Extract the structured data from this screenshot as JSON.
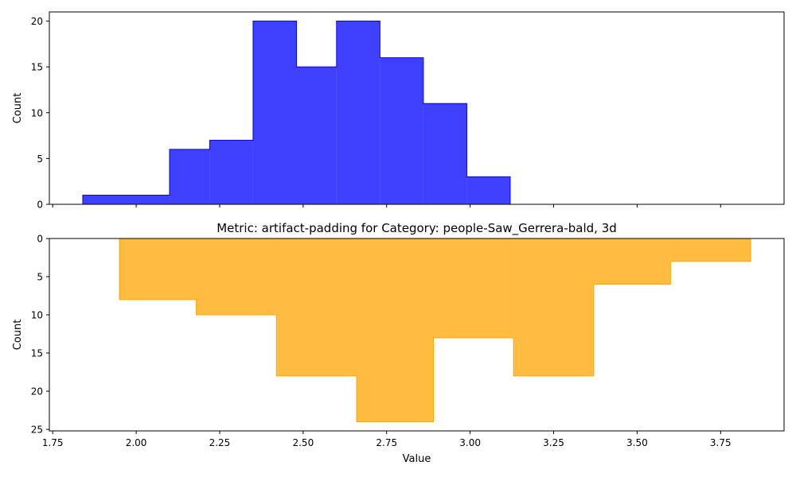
{
  "chart_data": [
    {
      "type": "histogram",
      "title": "",
      "xlabel": "",
      "ylabel": "Count",
      "xlim": [
        1.74,
        3.94
      ],
      "ylim": [
        0,
        21
      ],
      "x_ticks": [
        1.75,
        2.0,
        2.25,
        2.5,
        2.75,
        3.0,
        3.25,
        3.5,
        3.75
      ],
      "x_tick_labels_visible": false,
      "y_ticks": [
        0,
        5,
        10,
        15,
        20
      ],
      "y_tick_labels": [
        "0",
        "5",
        "10",
        "15",
        "20"
      ],
      "bin_edges": [
        1.84,
        2.1,
        2.22,
        2.35,
        2.48,
        2.6,
        2.73,
        2.86,
        2.99,
        3.12
      ],
      "counts": [
        1,
        6,
        7,
        20,
        15,
        20,
        16,
        11,
        3
      ],
      "fill_color": "#0000ff",
      "fill_opacity": 0.75,
      "edge_color": "#0000ff",
      "inverted_y": false,
      "grid": false,
      "legend": "none"
    },
    {
      "type": "histogram",
      "title": "Metric: artifact-padding for Category: people-Saw_Gerrera-bald, 3d",
      "xlabel": "Value",
      "ylabel": "Count",
      "xlim": [
        1.74,
        3.94
      ],
      "ylim": [
        0,
        25.2
      ],
      "x_ticks": [
        1.75,
        2.0,
        2.25,
        2.5,
        2.75,
        3.0,
        3.25,
        3.5,
        3.75
      ],
      "x_tick_labels": [
        "1.75",
        "2.00",
        "2.25",
        "2.50",
        "2.75",
        "3.00",
        "3.25",
        "3.50",
        "3.75"
      ],
      "y_ticks": [
        0,
        5,
        10,
        15,
        20,
        25
      ],
      "y_tick_labels": [
        "0",
        "5",
        "10",
        "15",
        "20",
        "25"
      ],
      "bin_edges": [
        1.95,
        2.18,
        2.42,
        2.66,
        2.89,
        3.13,
        3.37,
        3.6,
        3.84
      ],
      "counts": [
        8,
        10,
        18,
        24,
        13,
        18,
        6,
        3
      ],
      "fill_color": "#ffa500",
      "fill_opacity": 0.75,
      "edge_color": "#ffa500",
      "inverted_y": true,
      "grid": false,
      "legend": "none"
    }
  ]
}
